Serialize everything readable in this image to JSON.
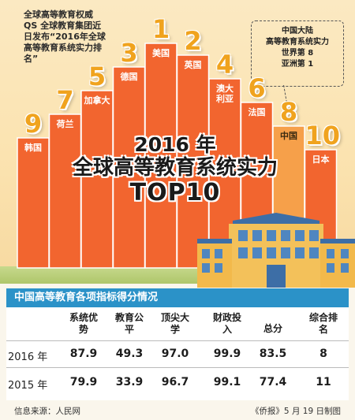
{
  "intro_text": "全球高等教育权威 QS 全球教育集团近日发布“2016年全球高等教育系统实力排名”",
  "callout": {
    "lines": [
      "中国大陆",
      "高等教育系统实力",
      "世界第 8",
      "亚洲第 1"
    ]
  },
  "title": {
    "year": "2016 年",
    "main": "全球高等教育系统实力",
    "top": "TOP10"
  },
  "colors": {
    "bar": "#f2652f",
    "bar_highlight": "#f6a04a",
    "rank_number": "#f0a31e",
    "table_header": "#2b92c8"
  },
  "chart_data": [
    {
      "type": "bar",
      "categories": [
        "韩国",
        "荷兰",
        "加拿大",
        "德国",
        "美国",
        "英国",
        "澳大利亚",
        "法国",
        "中国",
        "日本"
      ],
      "ranks": [
        9,
        7,
        5,
        3,
        1,
        2,
        4,
        6,
        8,
        10
      ],
      "highlight": "中国"
    },
    {
      "type": "table",
      "title": "中国高等教育各项指标得分情况",
      "columns": [
        "系统优势",
        "教育公平",
        "顶尖大学",
        "财政投入",
        "总分",
        "综合排名"
      ],
      "rows": [
        {
          "label": "2016 年",
          "values": [
            "87.9",
            "49.3",
            "97.0",
            "99.9",
            "83.5",
            "8"
          ]
        },
        {
          "label": "2015 年",
          "values": [
            "79.9",
            "33.9",
            "96.7",
            "99.1",
            "77.4",
            "11"
          ]
        }
      ]
    }
  ],
  "footer": {
    "source": "信息来源：人民网",
    "credit": "《侨报》5 月 19 日制图"
  }
}
